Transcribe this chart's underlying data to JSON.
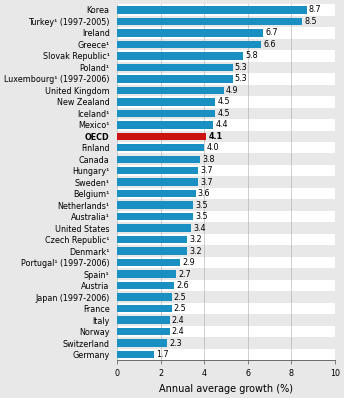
{
  "categories": [
    "Korea",
    "Turkey¹ (1997-2005)",
    "Ireland",
    "Greece¹",
    "Slovak Republic¹",
    "Poland¹",
    "Luxembourg¹ (1997-2006)",
    "United Kingdom",
    "New Zealand",
    "Iceland¹",
    "Mexico¹",
    "OECD",
    "Finland",
    "Canada",
    "Hungary¹",
    "Sweden¹",
    "Belgium¹",
    "Netherlands¹",
    "Australia¹",
    "United States",
    "Czech Republic¹",
    "Denmark¹",
    "Portugal¹ (1997-2006)",
    "Spain¹",
    "Austria",
    "Japan (1997-2006)",
    "France",
    "Italy",
    "Norway",
    "Switzerland",
    "Germany"
  ],
  "values": [
    8.7,
    8.5,
    6.7,
    6.6,
    5.8,
    5.3,
    5.3,
    4.9,
    4.5,
    4.5,
    4.4,
    4.1,
    4.0,
    3.8,
    3.7,
    3.7,
    3.6,
    3.5,
    3.5,
    3.4,
    3.2,
    3.2,
    2.9,
    2.7,
    2.6,
    2.5,
    2.5,
    2.4,
    2.4,
    2.3,
    1.7
  ],
  "bar_colors": [
    "#1a8fc1",
    "#1a8fc1",
    "#1a8fc1",
    "#1a8fc1",
    "#1a8fc1",
    "#1a8fc1",
    "#1a8fc1",
    "#1a8fc1",
    "#1a8fc1",
    "#1a8fc1",
    "#1a8fc1",
    "#cc1111",
    "#1a8fc1",
    "#1a8fc1",
    "#1a8fc1",
    "#1a8fc1",
    "#1a8fc1",
    "#1a8fc1",
    "#1a8fc1",
    "#1a8fc1",
    "#1a8fc1",
    "#1a8fc1",
    "#1a8fc1",
    "#1a8fc1",
    "#1a8fc1",
    "#1a8fc1",
    "#1a8fc1",
    "#1a8fc1",
    "#1a8fc1",
    "#1a8fc1",
    "#1a8fc1"
  ],
  "row_colors": [
    "#ffffff",
    "#e8e8e8"
  ],
  "xlabel": "Annual average growth (%)",
  "xlim": [
    0,
    10
  ],
  "xticks": [
    0,
    2,
    4,
    6,
    8,
    10
  ],
  "figure_bg": "#e8e8e8",
  "label_fontsize": 5.8,
  "value_fontsize": 5.8,
  "xlabel_fontsize": 7.0
}
